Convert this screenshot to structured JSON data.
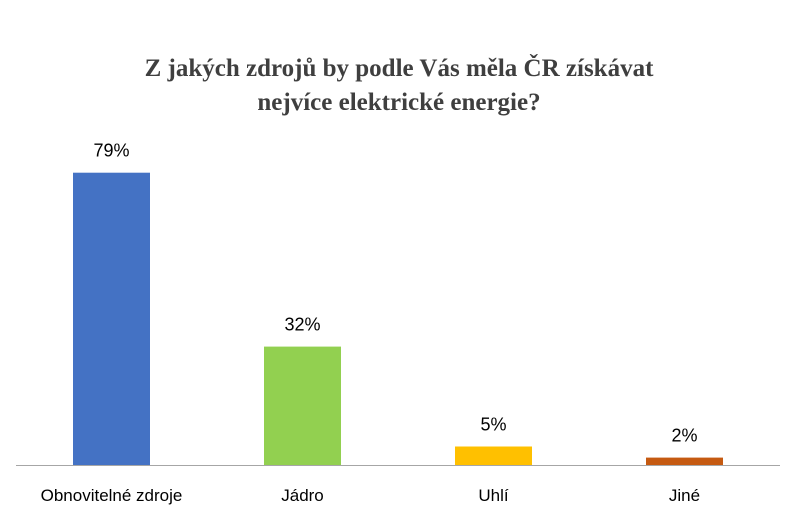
{
  "chart_data": {
    "type": "bar",
    "title_lines": [
      "Z jakých zdrojů by podle Vás měla ČR získávat",
      "nejvíce elektrické energie?"
    ],
    "categories": [
      "Obnovitelné zdroje",
      "Jádro",
      "Uhlí",
      "Jiné"
    ],
    "values": [
      79,
      32,
      5,
      2
    ],
    "data_labels": [
      "79%",
      "32%",
      "5%",
      "2%"
    ],
    "colors": [
      "#4472C4",
      "#92D050",
      "#FFC000",
      "#C55A11"
    ],
    "axis_color": "#A6A6A6",
    "ylim": [
      0,
      100
    ],
    "xlabel": "",
    "ylabel": "",
    "grid": false,
    "legend": "none"
  }
}
